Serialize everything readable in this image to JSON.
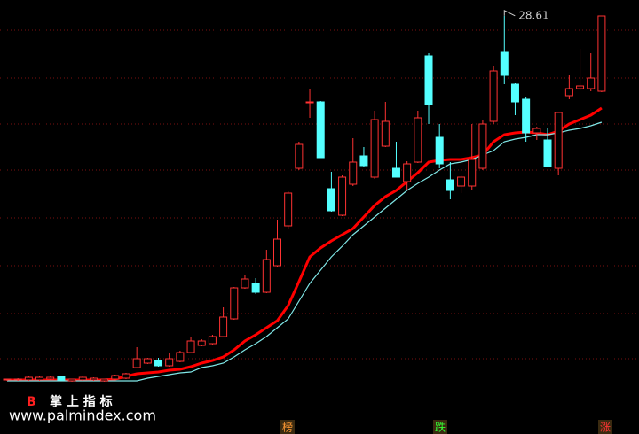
{
  "chart_data": {
    "type": "candlestick",
    "ylim": [
      7.5,
      29.5
    ],
    "up_color": "#ff3232",
    "down_color": "#54ffff",
    "open": [
      8.05,
      8.05,
      8.05,
      8.05,
      8.1,
      8.25,
      8.0,
      8.05,
      8.05,
      8.0,
      8.1,
      8.15,
      8.75,
      9.0,
      9.15,
      8.85,
      9.1,
      9.6,
      10.0,
      10.1,
      10.5,
      11.5,
      13.25,
      13.5,
      13.0,
      14.5,
      16.75,
      20.0,
      23.7,
      23.75,
      18.85,
      17.35,
      19.1,
      20.7,
      19.5,
      21.25,
      20.0,
      19.25,
      20.35,
      26.35,
      21.75,
      19.35,
      19.0,
      19.0,
      20.0,
      22.65,
      26.55,
      24.75,
      23.9,
      22.0,
      21.6,
      20.0,
      24.1,
      24.5,
      24.5,
      24.35
    ],
    "high": [
      8.1,
      8.15,
      8.25,
      8.25,
      8.25,
      8.3,
      8.1,
      8.25,
      8.2,
      8.1,
      8.35,
      8.45,
      9.9,
      9.3,
      9.3,
      9.6,
      9.7,
      10.45,
      10.35,
      10.6,
      12.15,
      13.3,
      14.0,
      13.8,
      15.4,
      17.1,
      18.7,
      21.5,
      24.45,
      23.8,
      19.8,
      19.6,
      21.7,
      21.2,
      23.25,
      23.75,
      21.5,
      20.4,
      23.25,
      26.5,
      22.5,
      20.35,
      19.6,
      22.5,
      22.75,
      25.75,
      28.61,
      24.8,
      24.0,
      22.35,
      22.3,
      23.15,
      25.25,
      26.75,
      26.5,
      28.6
    ],
    "low": [
      8.0,
      8.0,
      8.0,
      8.0,
      8.05,
      8.0,
      7.95,
      8.0,
      8.0,
      7.95,
      8.05,
      8.1,
      8.7,
      8.95,
      8.8,
      8.8,
      9.05,
      9.55,
      9.95,
      10.05,
      10.45,
      11.45,
      13.2,
      12.9,
      12.95,
      14.4,
      16.6,
      19.9,
      22.85,
      20.6,
      17.55,
      17.3,
      19.0,
      20.1,
      19.4,
      21.2,
      19.5,
      18.75,
      20.3,
      22.5,
      20.0,
      18.25,
      18.6,
      18.8,
      19.9,
      22.5,
      24.75,
      23.0,
      21.5,
      21.6,
      20.1,
      19.6,
      23.9,
      24.4,
      24.35,
      24.3
    ],
    "close": [
      8.1,
      8.1,
      8.2,
      8.2,
      8.2,
      8.05,
      8.1,
      8.2,
      8.15,
      8.1,
      8.3,
      8.4,
      9.25,
      9.25,
      8.85,
      9.25,
      9.6,
      10.25,
      10.25,
      10.5,
      11.6,
      13.25,
      13.75,
      13.0,
      14.85,
      16.0,
      18.6,
      21.35,
      23.75,
      20.6,
      17.6,
      19.5,
      20.35,
      20.15,
      22.75,
      22.65,
      19.5,
      20.25,
      22.85,
      23.6,
      20.25,
      18.75,
      19.5,
      20.5,
      22.5,
      25.5,
      25.25,
      23.75,
      22.0,
      22.25,
      20.1,
      23.15,
      24.5,
      24.65,
      25.1,
      28.6
    ],
    "lines": [
      {
        "color": "#ff0000",
        "values": [
          8.05,
          8.05,
          8.05,
          8.05,
          8.05,
          8.05,
          8.05,
          8.05,
          8.05,
          8.05,
          8.1,
          8.25,
          8.4,
          8.45,
          8.5,
          8.6,
          8.65,
          8.8,
          9.0,
          9.15,
          9.35,
          9.75,
          10.25,
          10.6,
          11.0,
          11.4,
          12.25,
          13.6,
          15.0,
          15.5,
          15.9,
          16.25,
          16.6,
          17.25,
          17.9,
          18.4,
          18.75,
          19.25,
          19.75,
          20.35,
          20.45,
          20.5,
          20.5,
          20.6,
          20.75,
          21.5,
          21.9,
          22.0,
          22.05,
          22.0,
          21.9,
          22.1,
          22.5,
          22.75,
          23.0,
          23.4
        ]
      },
      {
        "color": "#7fe6e6",
        "values": [
          8.0,
          8.0,
          8.0,
          8.0,
          8.0,
          8.0,
          8.0,
          8.0,
          8.0,
          8.0,
          8.0,
          8.0,
          8.0,
          8.15,
          8.25,
          8.35,
          8.45,
          8.5,
          8.75,
          8.85,
          9.0,
          9.35,
          9.75,
          10.1,
          10.5,
          11.0,
          11.5,
          12.5,
          13.5,
          14.25,
          15.0,
          15.6,
          16.25,
          16.75,
          17.25,
          17.75,
          18.25,
          18.75,
          19.15,
          19.5,
          19.9,
          20.25,
          20.35,
          20.5,
          20.75,
          21.0,
          21.5,
          21.65,
          21.75,
          21.9,
          21.9,
          22.0,
          22.15,
          22.25,
          22.4,
          22.6
        ]
      }
    ],
    "watermark_letter": "B",
    "watermark_title": "掌 上 指 标",
    "watermark_url": "www.palmindex.com",
    "footer_tags": [
      "榜",
      "跌",
      "涨"
    ]
  }
}
